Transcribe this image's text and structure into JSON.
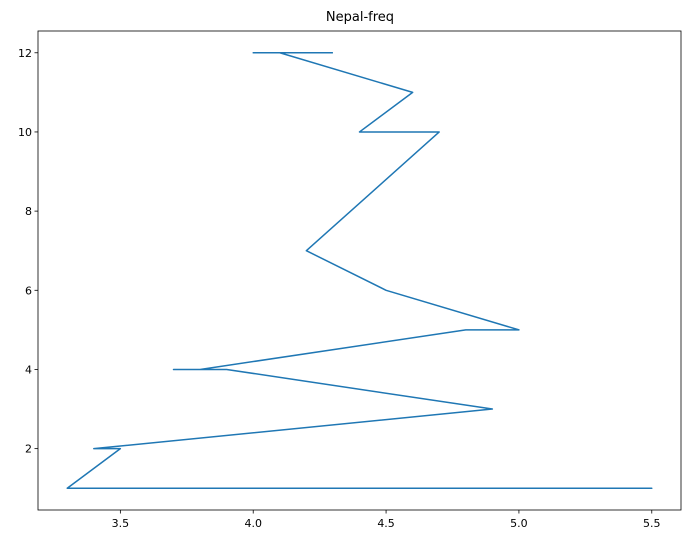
{
  "chart_data": {
    "type": "line",
    "title": "Nepal-freq",
    "xlabel": "",
    "ylabel": "",
    "xlim": [
      3.19,
      5.61
    ],
    "ylim": [
      0.45,
      12.55
    ],
    "xticks": [
      3.5,
      4.0,
      4.5,
      5.0,
      5.5
    ],
    "xtick_labels": [
      "3.5",
      "4.0",
      "4.5",
      "5.0",
      "5.5"
    ],
    "yticks": [
      2,
      4,
      6,
      8,
      10,
      12
    ],
    "ytick_labels": [
      "2",
      "4",
      "6",
      "8",
      "10",
      "12"
    ],
    "grid": false,
    "legend": false,
    "series": [
      {
        "color": "#1f77b4",
        "x": [
          4.3,
          4.0,
          4.1,
          4.6,
          4.4,
          4.7,
          4.2,
          4.5,
          5.0,
          4.8,
          3.8,
          3.7,
          3.9,
          4.9,
          3.4,
          3.5,
          3.3,
          5.5,
          3.6,
          5.3
        ],
        "y": [
          12,
          12,
          12,
          11,
          10,
          10,
          7,
          6,
          5,
          5,
          4,
          4,
          4,
          3,
          2,
          2,
          1,
          1,
          1,
          1
        ]
      }
    ]
  }
}
